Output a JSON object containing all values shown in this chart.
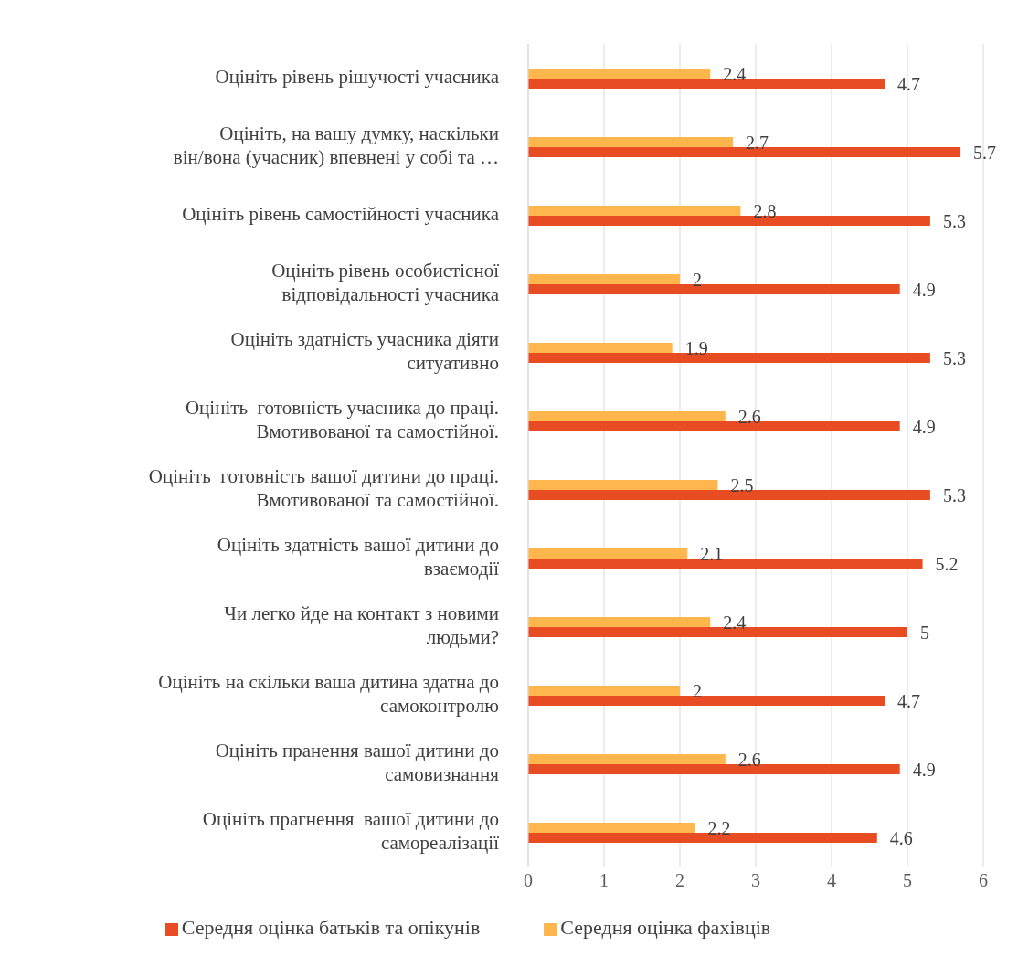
{
  "chart_data": {
    "type": "bar",
    "orientation": "horizontal",
    "categories": [
      "Оцініть рівень рішучості учасника",
      "Оцініть, на вашу думку, наскільки\nвін/вона (учасник) впевнені у собі та …",
      "Оцініть рівень самостійності учасника",
      "Оцініть рівень особистісної\nвідповідальності учасника",
      "Оцініть здатність учасника діяти\nситуативно",
      "Оцініть  готовність учасника до праці.\nВмотивованої та самостійної.",
      "Оцініть  готовність вашої дитини до праці.\nВмотивованої та самостійної.",
      "Оцініть здатність вашої дитини до\nвзаємодії",
      "Чи легко йде на контакт з новими\nлюдьми?",
      "Оцініть на скільки ваша дитина здатна до\nсамоконтролю",
      "Оцініть пранення вашої дитини до\nсамовизнання",
      "Оцініть прагнення  вашої дитини до\nсамореалізації"
    ],
    "series": [
      {
        "name": "Середня оцінка фахівців",
        "color": "#ffb74d",
        "values": [
          2.4,
          2.7,
          2.8,
          2,
          1.9,
          2.6,
          2.5,
          2.1,
          2.4,
          2,
          2.6,
          2.2
        ]
      },
      {
        "name": "Середня оцінка батьків та опікунів",
        "color": "#e84c22",
        "values": [
          4.7,
          5.7,
          5.3,
          4.9,
          5.3,
          4.9,
          5.3,
          5.2,
          5,
          4.7,
          4.9,
          4.6
        ]
      }
    ],
    "xlim": [
      0,
      6
    ],
    "xticks": [
      0,
      1,
      2,
      3,
      4,
      5,
      6
    ],
    "grid": "x",
    "legend": "bottom",
    "data_labels": true
  }
}
